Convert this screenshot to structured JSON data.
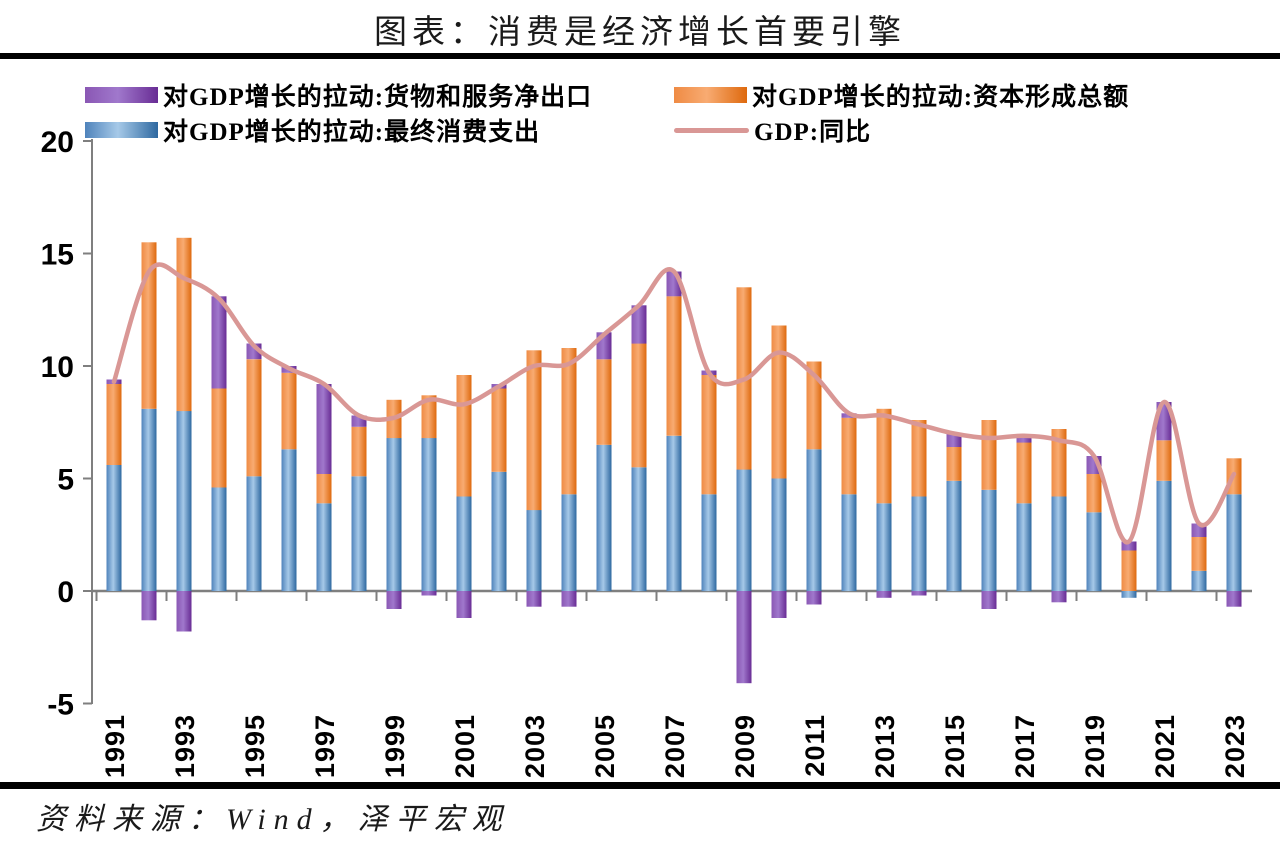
{
  "title": "图表：消费是经济增长首要引擎",
  "source": "资料来源：Wind，泽平宏观",
  "legend": {
    "items": [
      {
        "label": "对GDP增长的拉动:货物和服务净出口",
        "swatch": "bar",
        "color_key": "net_exports"
      },
      {
        "label": "对GDP增长的拉动:资本形成总额",
        "swatch": "bar",
        "color_key": "capital"
      },
      {
        "label": "对GDP增长的拉动:最终消费支出",
        "swatch": "bar",
        "color_key": "consumption"
      },
      {
        "label": "GDP:同比",
        "swatch": "line",
        "color_key": "gdp_line"
      }
    ]
  },
  "colors": {
    "consumption": {
      "base": "#5b9bd5",
      "mid": "#4f83bb",
      "light": "#a6c9e8",
      "dark": "#2e68a0"
    },
    "capital": {
      "base": "#ed7d31",
      "mid": "#ef8b44",
      "light": "#f8ab72",
      "dark": "#de690d"
    },
    "net_exports": {
      "base": "#7030a0",
      "mid": "#8a57b4",
      "light": "#a078cc",
      "dark": "#682c94"
    },
    "gdp_line": "#d99795",
    "axis": "#7f7f7f",
    "text": "#000000"
  },
  "chart_data": {
    "type": "bar",
    "subtype": "stacked-bar-with-line",
    "title": "图表：消费是经济增长首要引擎",
    "x": [
      1991,
      1992,
      1993,
      1994,
      1995,
      1996,
      1997,
      1998,
      1999,
      2000,
      2001,
      2002,
      2003,
      2004,
      2005,
      2006,
      2007,
      2008,
      2009,
      2010,
      2011,
      2012,
      2013,
      2014,
      2015,
      2016,
      2017,
      2018,
      2019,
      2020,
      2021,
      2022,
      2023
    ],
    "series": [
      {
        "name": "对GDP增长的拉动:最终消费支出",
        "type": "bar",
        "color_key": "consumption",
        "values": [
          5.6,
          8.1,
          8.0,
          4.6,
          5.1,
          6.3,
          3.9,
          5.1,
          6.8,
          6.8,
          4.2,
          5.3,
          3.6,
          4.3,
          6.5,
          5.5,
          6.9,
          4.3,
          5.4,
          5.0,
          6.3,
          4.3,
          3.9,
          4.2,
          4.9,
          4.5,
          3.9,
          4.2,
          3.5,
          -0.3,
          4.9,
          0.9,
          4.3
        ]
      },
      {
        "name": "对GDP增长的拉动:资本形成总额",
        "type": "bar",
        "color_key": "capital",
        "values": [
          3.6,
          7.4,
          7.7,
          4.4,
          5.2,
          3.4,
          1.3,
          2.2,
          1.7,
          1.9,
          5.4,
          3.7,
          7.1,
          6.5,
          3.8,
          5.5,
          6.2,
          5.3,
          8.1,
          6.8,
          3.9,
          3.4,
          4.2,
          3.4,
          1.5,
          3.1,
          2.7,
          3.0,
          1.7,
          1.8,
          1.8,
          1.5,
          1.6
        ]
      },
      {
        "name": "对GDP增长的拉动:货物和服务净出口",
        "type": "bar",
        "color_key": "net_exports",
        "values": [
          0.2,
          -1.3,
          -1.8,
          4.1,
          0.7,
          0.3,
          4.0,
          0.5,
          -0.8,
          -0.2,
          -1.2,
          0.2,
          -0.7,
          -0.7,
          1.2,
          1.7,
          1.1,
          0.2,
          -4.1,
          -1.2,
          -0.6,
          0.2,
          -0.3,
          -0.2,
          0.6,
          -0.8,
          0.3,
          -0.5,
          0.8,
          0.4,
          1.7,
          0.6,
          -0.7
        ]
      },
      {
        "name": "GDP:同比",
        "type": "line",
        "color_key": "gdp_line",
        "values": [
          9.3,
          14.2,
          13.9,
          13.0,
          10.9,
          9.9,
          9.2,
          7.8,
          7.7,
          8.5,
          8.3,
          9.1,
          10.0,
          10.1,
          11.4,
          12.7,
          14.2,
          9.7,
          9.4,
          10.6,
          9.6,
          7.9,
          7.8,
          7.4,
          7.0,
          6.8,
          6.9,
          6.7,
          6.0,
          2.2,
          8.4,
          3.0,
          5.2
        ]
      }
    ],
    "ylim": [
      -5,
      20
    ],
    "yticks": [
      20,
      15,
      10,
      5,
      0,
      -5
    ],
    "xtick_labels": [
      "1991",
      "1993",
      "1995",
      "1997",
      "1999",
      "2001",
      "2003",
      "2005",
      "2007",
      "2009",
      "2011",
      "2013",
      "2015",
      "2017",
      "2019",
      "2021",
      "2023"
    ],
    "grid": false,
    "legend_position": "top"
  }
}
